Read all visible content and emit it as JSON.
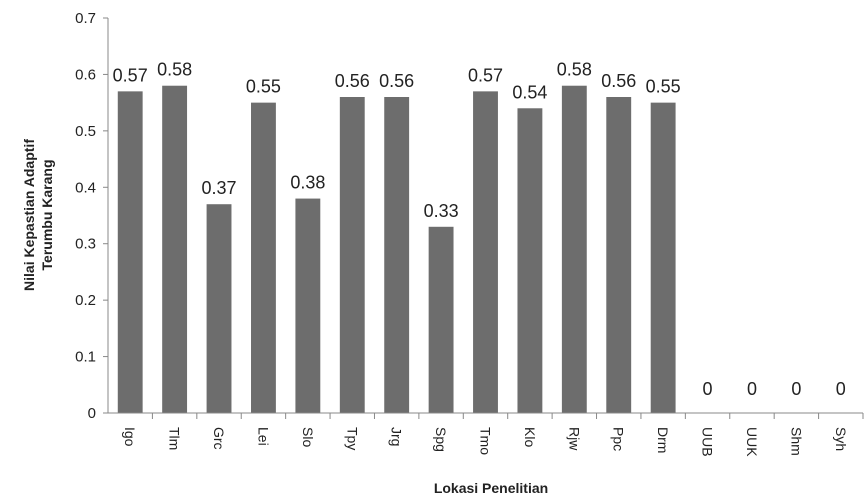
{
  "chart_data": {
    "type": "bar",
    "title": "",
    "xlabel": "Lokasi Penelitian",
    "ylabel_lines": [
      "Nilai Kepastian Adaptif",
      "Terumbu Karang"
    ],
    "ylim": [
      0,
      0.7
    ],
    "yticks": [
      "0",
      "0.1",
      "0.2",
      "0.3",
      "0.4",
      "0.5",
      "0.6",
      "0.7"
    ],
    "categories": [
      "Igo",
      "Tlm",
      "Grc",
      "Lei",
      "Slo",
      "Tpy",
      "Jrg",
      "Spg",
      "Tmo",
      "Klo",
      "Rjw",
      "Ppc",
      "Drm",
      "UUB",
      "UUK",
      "Shm",
      "Syh"
    ],
    "values": [
      0.57,
      0.58,
      0.37,
      0.55,
      0.38,
      0.56,
      0.56,
      0.33,
      0.57,
      0.54,
      0.58,
      0.56,
      0.55,
      0,
      0,
      0,
      0
    ],
    "data_labels": [
      "0.57",
      "0.58",
      "0.37",
      "0.55",
      "0.38",
      "0.56",
      "0.56",
      "0.33",
      "0.57",
      "0.54",
      "0.58",
      "0.56",
      "0.55",
      "0",
      "0",
      "0",
      "0"
    ],
    "bar_color": "#6d6d6d",
    "grid": false,
    "legend": "none"
  }
}
